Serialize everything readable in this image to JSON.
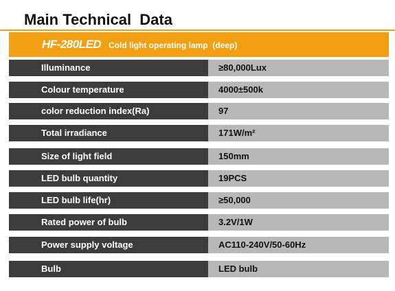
{
  "header": {
    "title": "Main Technical  Data"
  },
  "banner": {
    "model": "HF-280LED",
    "description": "Cold light operating lamp  (deep)"
  },
  "table": {
    "rows": [
      [
        "Illuminance",
        "≥80,000Lux"
      ],
      [
        "Colour temperature",
        "4000±500k"
      ],
      [
        "color reduction index(Ra)",
        "97"
      ],
      [
        "Total irradiance",
        "171W/m²"
      ],
      [
        "Size of light field",
        "150mm"
      ],
      [
        "LED bulb quantity",
        "19PCS"
      ],
      [
        "LED bulb life(hr)",
        "≥50,000"
      ],
      [
        "Rated power of bulb",
        "3.2V/1W"
      ],
      [
        "Power supply voltage",
        "AC110-240V/50-60Hz"
      ],
      [
        "Bulb",
        "LED bulb"
      ]
    ]
  }
}
